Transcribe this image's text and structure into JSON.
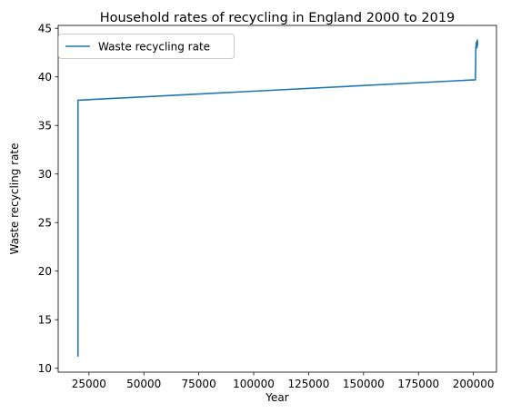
{
  "chart_data": {
    "type": "line",
    "title": "Household rates of recycling in England 2000 to 2019",
    "xlabel": "Year",
    "ylabel": "Waste recycling rate",
    "xlim": [
      11000,
      210500
    ],
    "ylim": [
      9.6,
      45.3
    ],
    "x_ticks": [
      25000,
      50000,
      75000,
      100000,
      125000,
      150000,
      175000,
      200000
    ],
    "x_tick_labels": [
      "25000",
      "50000",
      "75000",
      "100000",
      "125000",
      "150000",
      "175000",
      "200000"
    ],
    "y_ticks": [
      10,
      15,
      20,
      25,
      30,
      35,
      40,
      45
    ],
    "y_tick_labels": [
      "10",
      "15",
      "20",
      "25",
      "30",
      "35",
      "40",
      "45"
    ],
    "grid": false,
    "legend": {
      "position": "upper-left"
    },
    "colors": {
      "series": "#1f77b4",
      "axes": "#000000"
    },
    "series": [
      {
        "name": "Waste recycling rate",
        "x": [
          20000,
          20010,
          200910,
          201011,
          201112,
          201213,
          201314,
          201415,
          201516,
          201617,
          201718,
          201819,
          201920
        ],
        "y": [
          11.2,
          37.6,
          39.7,
          40.8,
          43.0,
          43.2,
          43.5,
          43.6,
          43.2,
          43.0,
          43.5,
          43.8,
          43.2
        ]
      }
    ]
  }
}
